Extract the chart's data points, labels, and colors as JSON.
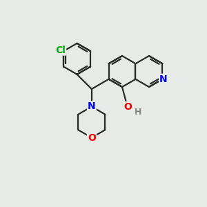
{
  "bg_color": "#e8eae8",
  "bond_color": "#2a2a2a",
  "bond_width": 1.6,
  "atom_colors": {
    "N": "#0000ee",
    "O": "#ee0000",
    "Cl": "#00aa00",
    "H": "#888888"
  },
  "font_size": 9.5,
  "fig_size": [
    3.0,
    3.0
  ],
  "dpi": 100,
  "xlim": [
    0,
    10
  ],
  "ylim": [
    0,
    10
  ]
}
